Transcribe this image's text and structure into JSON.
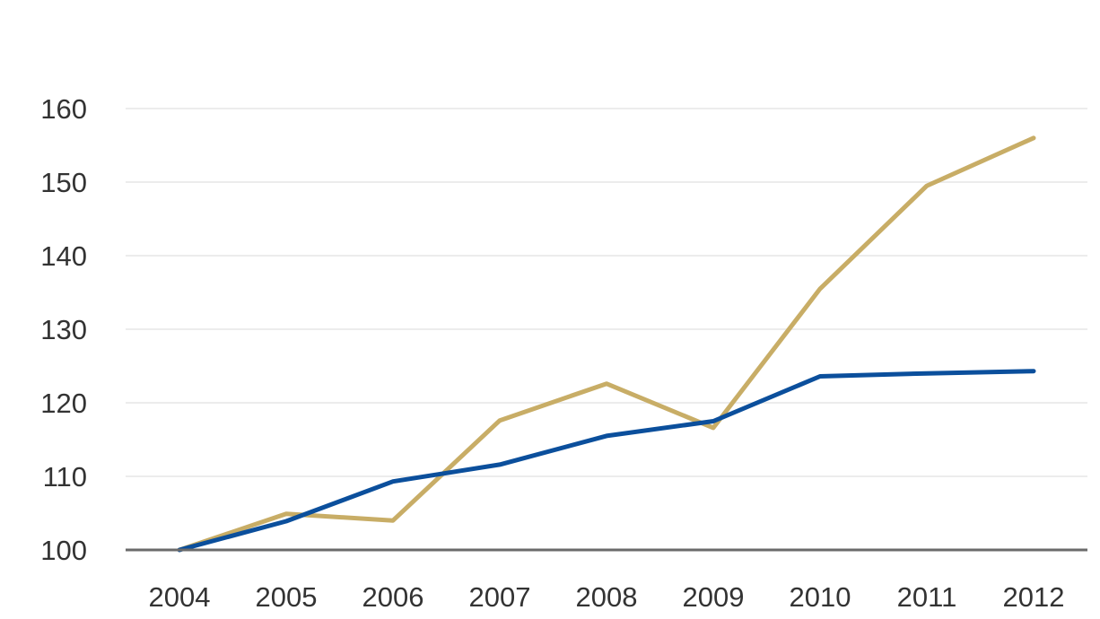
{
  "chart_data": {
    "type": "line",
    "title": "",
    "xlabel": "",
    "ylabel": "",
    "x": [
      "2004",
      "2005",
      "2006",
      "2007",
      "2008",
      "2009",
      "2010",
      "2011",
      "2012"
    ],
    "ylim": [
      100,
      160
    ],
    "yticks": [
      100,
      110,
      120,
      130,
      140,
      150,
      160
    ],
    "grid": true,
    "legend": "none",
    "series": [
      {
        "color": "#0b4f9c",
        "values": [
          100,
          103.9,
          109.3,
          111.6,
          115.5,
          117.5,
          123.6,
          124.0,
          124.3
        ]
      },
      {
        "color": "#c8ad66",
        "values": [
          100,
          104.9,
          104.0,
          117.6,
          122.6,
          116.6,
          135.5,
          149.5,
          156.0
        ]
      }
    ]
  }
}
